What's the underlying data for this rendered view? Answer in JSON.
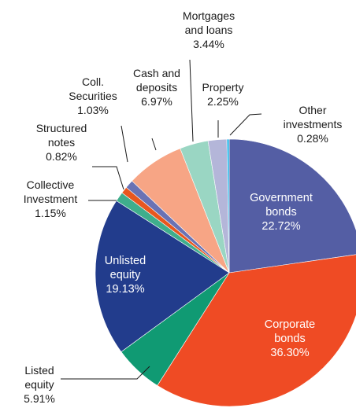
{
  "chart_data": {
    "type": "pie",
    "title": "",
    "start_angle_deg": 0,
    "direction": "clockwise",
    "slices": [
      {
        "label": [
          "Government",
          "bonds"
        ],
        "pct_label": "22.72%",
        "value": 22.72,
        "color": "#545ea4",
        "label_pos": "inside"
      },
      {
        "label": [
          "Corporate",
          "bonds"
        ],
        "pct_label": "36.30%",
        "value": 36.3,
        "color": "#ef4b24",
        "label_pos": "inside"
      },
      {
        "label": [
          "Listed",
          "equity"
        ],
        "pct_label": "5.91%",
        "value": 5.91,
        "color": "#109a73",
        "label_pos": "outside"
      },
      {
        "label": [
          "Unlisted",
          "equity"
        ],
        "pct_label": "19.13%",
        "value": 19.13,
        "color": "#223c8c",
        "label_pos": "inside"
      },
      {
        "label": [
          "Collective",
          "Investment"
        ],
        "pct_label": "1.15%",
        "value": 1.15,
        "color": "#3fae8c",
        "label_pos": "outside"
      },
      {
        "label": [
          "Structured",
          "notes"
        ],
        "pct_label": "0.82%",
        "value": 0.82,
        "color": "#e8571f",
        "label_pos": "outside"
      },
      {
        "label": [
          "Coll.",
          "Securities"
        ],
        "pct_label": "1.03%",
        "value": 1.03,
        "color": "#6a72b4",
        "label_pos": "outside"
      },
      {
        "label": [
          "Cash and",
          "deposits"
        ],
        "pct_label": "6.97%",
        "value": 6.97,
        "color": "#f7a585",
        "label_pos": "outside"
      },
      {
        "label": [
          "Mortgages",
          "and loans"
        ],
        "pct_label": "3.44%",
        "value": 3.44,
        "color": "#9ad6c3",
        "label_pos": "outside"
      },
      {
        "label": [
          "Property"
        ],
        "pct_label": "2.25%",
        "value": 2.25,
        "color": "#b4b6d9",
        "label_pos": "outside"
      },
      {
        "label": [
          "Other",
          "investments"
        ],
        "pct_label": "0.28%",
        "value": 0.28,
        "color": "#29b7e8",
        "label_pos": "outside"
      }
    ]
  }
}
